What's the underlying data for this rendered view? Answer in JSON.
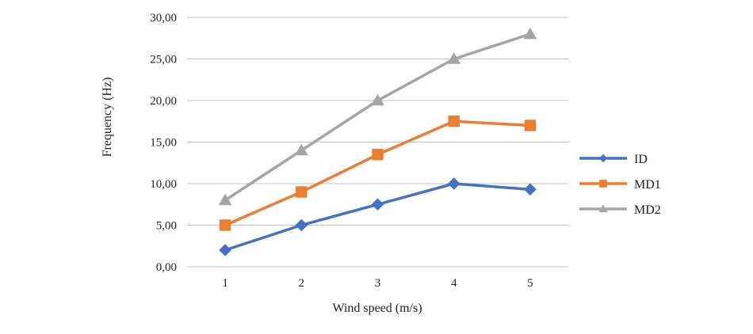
{
  "chart_data": {
    "type": "line",
    "title": "",
    "xlabel": "Wind speed (m/s)",
    "ylabel": "Frequency (Hz)",
    "categories": [
      "1",
      "2",
      "3",
      "4",
      "5"
    ],
    "ylim": [
      0,
      30
    ],
    "yticks": [
      "0,00",
      "5,00",
      "10,00",
      "15,00",
      "20,00",
      "25,00",
      "30,00"
    ],
    "grid": true,
    "legend_position": "right",
    "series": [
      {
        "name": "ID",
        "color": "#4472C4",
        "marker": "diamond",
        "values": [
          2.0,
          5.0,
          7.5,
          10.0,
          9.3
        ]
      },
      {
        "name": "MD1",
        "color": "#ED7D31",
        "marker": "square",
        "values": [
          5.0,
          9.0,
          13.5,
          17.5,
          17.0
        ]
      },
      {
        "name": "MD2",
        "color": "#A5A5A5",
        "marker": "triangle",
        "values": [
          8.0,
          14.0,
          20.0,
          25.0,
          28.0
        ]
      }
    ]
  }
}
